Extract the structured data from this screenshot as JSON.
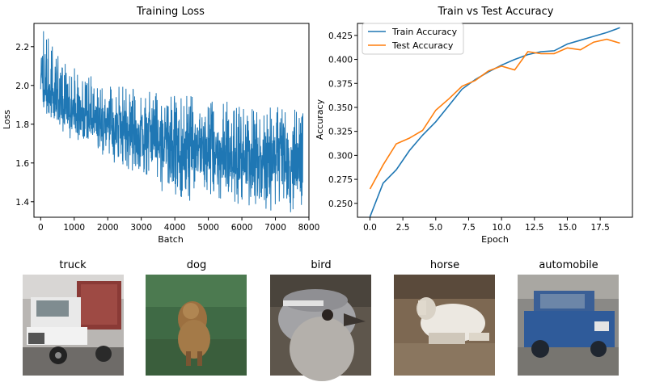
{
  "chart_data": [
    {
      "type": "line",
      "title": "Training Loss",
      "xlabel": "Batch",
      "ylabel": "Loss",
      "xlim": [
        -200,
        8000
      ],
      "ylim": [
        1.32,
        2.32
      ],
      "xticks": [
        "0",
        "1000",
        "2000",
        "3000",
        "4000",
        "5000",
        "6000",
        "7000",
        "8000"
      ],
      "yticks": [
        "1.4",
        "1.6",
        "1.8",
        "2.0",
        "2.2"
      ],
      "series": [
        {
          "color": "#1f77b4",
          "batches": 7820,
          "trend": {
            "x": [
              0,
              100,
              300,
              500,
              1000,
              2000,
              3000,
              4000,
              5000,
              6000,
              7000,
              7820
            ],
            "y": [
              2.12,
              1.97,
              1.92,
              1.9,
              1.86,
              1.8,
              1.74,
              1.69,
              1.66,
              1.63,
              1.61,
              1.6
            ]
          },
          "band": {
            "x": [
              0,
              500,
              1000,
              2000,
              3000,
              4000,
              5000,
              6000,
              7000,
              7820
            ],
            "low": [
              1.92,
              1.82,
              1.76,
              1.66,
              1.56,
              1.46,
              1.44,
              1.42,
              1.4,
              1.38
            ],
            "high": [
              2.3,
              2.12,
              2.05,
              1.97,
              1.94,
              1.92,
              1.9,
              1.86,
              1.85,
              1.84
            ]
          }
        }
      ]
    },
    {
      "type": "line",
      "title": "Train vs Test Accuracy",
      "xlabel": "Epoch",
      "ylabel": "Accuracy",
      "xlim": [
        -0.95,
        19.95
      ],
      "ylim": [
        0.2355,
        0.4375
      ],
      "xticks": [
        "0.0",
        "2.5",
        "5.0",
        "7.5",
        "10.0",
        "12.5",
        "15.0",
        "17.5"
      ],
      "yticks": [
        "0.250",
        "0.275",
        "0.300",
        "0.325",
        "0.350",
        "0.375",
        "0.400",
        "0.425"
      ],
      "legend": "top-left",
      "x": [
        0,
        1,
        2,
        3,
        4,
        5,
        6,
        7,
        8,
        9,
        10,
        11,
        12,
        13,
        14,
        15,
        16,
        17,
        18,
        19
      ],
      "series": [
        {
          "name": "Train Accuracy",
          "color": "#1f77b4",
          "values": [
            0.236,
            0.271,
            0.285,
            0.305,
            0.321,
            0.335,
            0.352,
            0.369,
            0.379,
            0.387,
            0.394,
            0.4,
            0.405,
            0.408,
            0.409,
            0.416,
            0.42,
            0.424,
            0.428,
            0.433
          ]
        },
        {
          "name": "Test Accuracy",
          "color": "#ff7f0e",
          "values": [
            0.265,
            0.29,
            0.312,
            0.318,
            0.326,
            0.347,
            0.359,
            0.372,
            0.378,
            0.388,
            0.393,
            0.389,
            0.408,
            0.406,
            0.406,
            0.412,
            0.41,
            0.418,
            0.421,
            0.417
          ]
        }
      ]
    }
  ],
  "thumbnails": [
    {
      "label": "truck",
      "icon": "truck-photo"
    },
    {
      "label": "dog",
      "icon": "dog-photo"
    },
    {
      "label": "bird",
      "icon": "bird-photo"
    },
    {
      "label": "horse",
      "icon": "horse-photo"
    },
    {
      "label": "automobile",
      "icon": "automobile-photo"
    }
  ]
}
